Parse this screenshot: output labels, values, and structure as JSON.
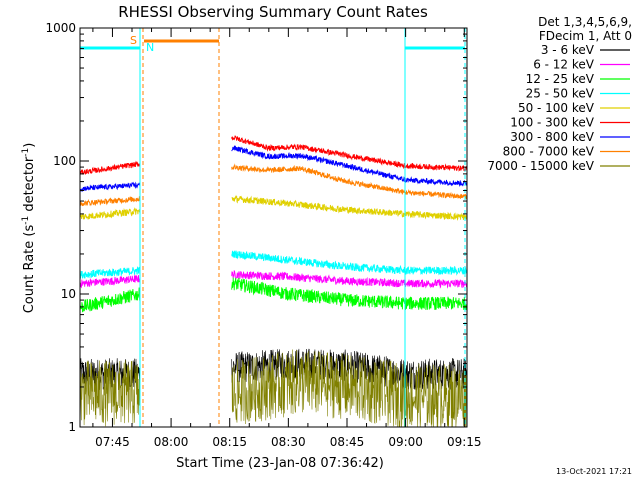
{
  "chart_data": {
    "type": "line",
    "title": "RHESSI Observing Summary Count Rates",
    "xlabel": "Start Time (23-Jan-08 07:36:42)",
    "ylabel": "Count Rate (s⁻¹ detector⁻¹)",
    "ylabel_parts": {
      "main": "Count Rate (s",
      "sup1": "-1",
      "mid": " detector",
      "sup2": "-1",
      "end": ")"
    },
    "yscale": "log",
    "ylim": [
      1,
      1000
    ],
    "xlim": [
      "07:36:42",
      "09:15:42"
    ],
    "x_tick_labels": [
      "07:45",
      "08:00",
      "08:15",
      "08:30",
      "08:45",
      "09:00",
      "09:15"
    ],
    "y_tick_labels": [
      "1",
      "10",
      "100",
      "1000"
    ],
    "legend": {
      "placement": "right",
      "header": [
        "Det 1,3,4,5,6,9,",
        "FDecim 1, Att 0"
      ],
      "entries": [
        {
          "label": "3 - 6 keV",
          "color": "#000000"
        },
        {
          "label": "6 - 12 keV",
          "color": "#ff00ff"
        },
        {
          "label": "12 - 25 keV",
          "color": "#00ff00"
        },
        {
          "label": "25 - 50 keV",
          "color": "#00ffff"
        },
        {
          "label": "50 - 100 keV",
          "color": "#e0d000"
        },
        {
          "label": "100 - 300 keV",
          "color": "#ff0000"
        },
        {
          "label": "300 - 800 keV",
          "color": "#0000ff"
        },
        {
          "label": "800 - 7000 keV",
          "color": "#ff8000"
        },
        {
          "label": "7000 - 15000 keV",
          "color": "#808000"
        }
      ]
    },
    "annotations": {
      "flags": [
        {
          "label": "S",
          "color": "#ff8000"
        },
        {
          "label": "N",
          "color": "#00ffff"
        }
      ],
      "footer_timestamp": "13-Oct-2021 17:21"
    },
    "segments": [
      {
        "start": "07:36:42",
        "end": "07:52:00"
      },
      {
        "start": "08:15:30",
        "end": "09:15:42"
      }
    ],
    "series": [
      {
        "name": "3 - 6 keV",
        "color": "#000000",
        "noise": 0.12,
        "points": [
          [
            "07:37",
            "2.5"
          ],
          [
            "07:52",
            "2.5"
          ],
          [
            "08:16",
            "2.8"
          ],
          [
            "08:33",
            "3.0"
          ],
          [
            "08:45",
            "2.9"
          ],
          [
            "09:00",
            "2.5"
          ],
          [
            "09:15",
            "2.5"
          ]
        ]
      },
      {
        "name": "6 - 12 keV",
        "color": "#ff00ff",
        "noise": 0.03,
        "points": [
          [
            "07:37",
            "12"
          ],
          [
            "07:52",
            "13"
          ],
          [
            "08:16",
            "14"
          ],
          [
            "08:30",
            "13.5"
          ],
          [
            "08:45",
            "12.5"
          ],
          [
            "09:00",
            "12"
          ],
          [
            "09:15",
            "12"
          ]
        ]
      },
      {
        "name": "12 - 25 keV",
        "color": "#00ff00",
        "noise": 0.05,
        "points": [
          [
            "07:37",
            "8"
          ],
          [
            "07:52",
            "10"
          ],
          [
            "08:16",
            "12"
          ],
          [
            "08:30",
            "10"
          ],
          [
            "08:45",
            "9"
          ],
          [
            "09:00",
            "8.5"
          ],
          [
            "09:15",
            "8.5"
          ]
        ]
      },
      {
        "name": "25 - 50 keV",
        "color": "#00ffff",
        "noise": 0.03,
        "points": [
          [
            "07:37",
            "14"
          ],
          [
            "07:52",
            "15"
          ],
          [
            "08:16",
            "20"
          ],
          [
            "08:30",
            "18"
          ],
          [
            "08:45",
            "16"
          ],
          [
            "09:00",
            "15"
          ],
          [
            "09:15",
            "15"
          ]
        ]
      },
      {
        "name": "50 - 100 keV",
        "color": "#e0d000",
        "noise": 0.025,
        "points": [
          [
            "07:37",
            "38"
          ],
          [
            "07:52",
            "42"
          ],
          [
            "08:16",
            "52"
          ],
          [
            "08:30",
            "48"
          ],
          [
            "08:45",
            "43"
          ],
          [
            "09:00",
            "40"
          ],
          [
            "09:15",
            "38"
          ]
        ]
      },
      {
        "name": "100 - 300 keV",
        "color": "#ff0000",
        "noise": 0.02,
        "points": [
          [
            "07:37",
            "82"
          ],
          [
            "07:52",
            "95"
          ],
          [
            "08:16",
            "150"
          ],
          [
            "08:25",
            "125"
          ],
          [
            "08:33",
            "128"
          ],
          [
            "08:45",
            "110"
          ],
          [
            "09:00",
            "92"
          ],
          [
            "09:15",
            "88"
          ]
        ]
      },
      {
        "name": "300 - 800 keV",
        "color": "#0000ff",
        "noise": 0.02,
        "points": [
          [
            "07:37",
            "62"
          ],
          [
            "07:52",
            "66"
          ],
          [
            "08:16",
            "125"
          ],
          [
            "08:25",
            "108"
          ],
          [
            "08:33",
            "110"
          ],
          [
            "08:45",
            "92"
          ],
          [
            "09:00",
            "72"
          ],
          [
            "09:15",
            "68"
          ]
        ]
      },
      {
        "name": "800 - 7000 keV",
        "color": "#ff8000",
        "noise": 0.02,
        "points": [
          [
            "07:37",
            "48"
          ],
          [
            "07:52",
            "52"
          ],
          [
            "08:16",
            "90"
          ],
          [
            "08:25",
            "85"
          ],
          [
            "08:33",
            "88"
          ],
          [
            "08:45",
            "70"
          ],
          [
            "09:00",
            "58"
          ],
          [
            "09:15",
            "54"
          ]
        ]
      },
      {
        "name": "7000 - 15000 keV",
        "color": "#808000",
        "noise": 0.25,
        "points": [
          [
            "07:37",
            "1.8"
          ],
          [
            "07:52",
            "1.8"
          ],
          [
            "08:16",
            "1.8"
          ],
          [
            "08:33",
            "2.2"
          ],
          [
            "08:45",
            "2.0"
          ],
          [
            "09:00",
            "1.7"
          ],
          [
            "09:15",
            "1.7"
          ]
        ]
      }
    ]
  }
}
